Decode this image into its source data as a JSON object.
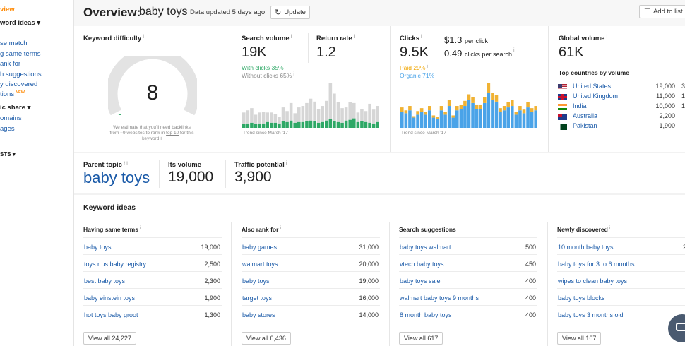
{
  "sidebar": {
    "active": "view",
    "keyword_ideas_head": "word ideas",
    "items": [
      "se match",
      "g same terms",
      "ank for",
      "h suggestions",
      "y discovered",
      "tions"
    ],
    "new_badge": "NEW",
    "traffic_share_head": "ic share",
    "traffic_items": [
      "omains",
      "ages"
    ],
    "lists_head": "STS"
  },
  "header": {
    "title_label": "Overview:",
    "keyword": "baby toys",
    "updated": "Data updated 5 days ago",
    "update_button": "Update",
    "add_to_list": "Add to list"
  },
  "difficulty": {
    "label": "Keyword difficulty",
    "value": "8",
    "score": 8,
    "note_a": "We estimate that you'll need backlinks",
    "note_b": "from ~9 websites to rank in",
    "note_link": "top 10",
    "note_c": "for this",
    "note_d": "keyword"
  },
  "volume": {
    "label": "Search volume",
    "value": "19K",
    "with_clicks": "With clicks 35%",
    "without_clicks": "Without clicks 65%",
    "trend": "Trend since March '17"
  },
  "return_rate": {
    "label": "Return rate",
    "value": "1.2"
  },
  "clicks": {
    "label": "Clicks",
    "value": "9.5K",
    "cpc": "$1.3",
    "cpc_label": "per click",
    "cps": "0.49",
    "cps_label": "clicks per search",
    "paid": "Paid 29%",
    "organic": "Organic 71%",
    "trend": "Trend since March '17"
  },
  "global": {
    "label": "Global volume",
    "value": "61K",
    "top_countries_label": "Top countries by volume",
    "countries": [
      {
        "name": "United States",
        "volume": "19,000",
        "extra": "3"
      },
      {
        "name": "United Kingdom",
        "volume": "11,000",
        "extra": "1"
      },
      {
        "name": "India",
        "volume": "10,000",
        "extra": "1"
      },
      {
        "name": "Australia",
        "volume": "2,200",
        "extra": ""
      },
      {
        "name": "Pakistan",
        "volume": "1,900",
        "extra": ""
      }
    ]
  },
  "parent_topic": {
    "label": "Parent topic",
    "value": "baby toys"
  },
  "its_volume": {
    "label": "Its volume",
    "value": "19,000"
  },
  "traffic_potential": {
    "label": "Traffic potential",
    "value": "3,900"
  },
  "keyword_ideas": {
    "title": "Keyword ideas",
    "columns": [
      {
        "header": "Having same terms",
        "rows": [
          [
            "baby toys",
            "19,000"
          ],
          [
            "toys r us baby registry",
            "2,500"
          ],
          [
            "best baby toys",
            "2,300"
          ],
          [
            "baby einstein toys",
            "1,900"
          ],
          [
            "hot toys baby groot",
            "1,300"
          ]
        ],
        "view_all": "View all 24,227"
      },
      {
        "header": "Also rank for",
        "rows": [
          [
            "baby games",
            "31,000"
          ],
          [
            "walmart toys",
            "20,000"
          ],
          [
            "baby toys",
            "19,000"
          ],
          [
            "target toys",
            "16,000"
          ],
          [
            "baby stores",
            "14,000"
          ]
        ],
        "view_all": "View all 6,436"
      },
      {
        "header": "Search suggestions",
        "rows": [
          [
            "baby toys walmart",
            "500"
          ],
          [
            "vtech baby toys",
            "450"
          ],
          [
            "baby toys sale",
            "400"
          ],
          [
            "walmart baby toys 9 months",
            "400"
          ],
          [
            "8 month baby toys",
            "400"
          ]
        ],
        "view_all": "View all 617"
      },
      {
        "header": "Newly discovered",
        "rows": [
          [
            "10 month baby toys",
            "2"
          ],
          [
            "baby toys for 3 to 6 months",
            ""
          ],
          [
            "wipes to clean baby toys",
            ""
          ],
          [
            "baby toys blocks",
            ""
          ],
          [
            "baby toys 3 months old",
            ""
          ]
        ],
        "view_all": "View all 167"
      }
    ]
  },
  "colors": {
    "green": "#2ea866",
    "gray_bar": "#d6d6d6",
    "blue_bar": "#4aa3e8",
    "orange_bar": "#f0b233",
    "link": "#1a5aa8"
  },
  "volume_chart": {
    "green": [
      5,
      6,
      7,
      5,
      6,
      6,
      8,
      7,
      7,
      6,
      9,
      8,
      10,
      7,
      8,
      8,
      9,
      10,
      9,
      7,
      8,
      10,
      12,
      9,
      8,
      7,
      10,
      11,
      13,
      8,
      9,
      8,
      7,
      6,
      8
    ],
    "gray": [
      16,
      18,
      20,
      13,
      15,
      16,
      13,
      14,
      12,
      9,
      19,
      15,
      24,
      13,
      20,
      22,
      25,
      30,
      27,
      19,
      22,
      27,
      50,
      38,
      27,
      20,
      18,
      24,
      21,
      13,
      17,
      15,
      26,
      19,
      22
    ]
  },
  "clicks_chart": {
    "blue": [
      22,
      20,
      24,
      14,
      18,
      22,
      18,
      24,
      14,
      12,
      24,
      18,
      30,
      14,
      24,
      26,
      30,
      38,
      34,
      26,
      26,
      34,
      48,
      38,
      36,
      22,
      24,
      28,
      30,
      18,
      24,
      20,
      28,
      22,
      24
    ],
    "orange": [
      6,
      4,
      6,
      2,
      5,
      5,
      4,
      6,
      3,
      3,
      6,
      4,
      8,
      3,
      6,
      6,
      7,
      8,
      8,
      6,
      6,
      8,
      14,
      10,
      9,
      5,
      6,
      7,
      8,
      4,
      6,
      5,
      7,
      5,
      6
    ]
  }
}
